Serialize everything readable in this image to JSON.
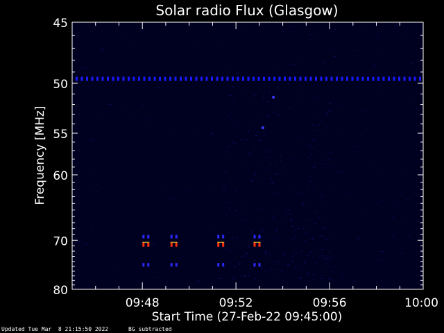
{
  "chart_data": {
    "type": "heatmap",
    "title": "Solar radio Flux (Glasgow)",
    "xlabel": "Start Time (27-Feb-22 09:45:00)",
    "ylabel": "Frequency [MHz]",
    "x_range_minutes": [
      0,
      15
    ],
    "x_ticks": [
      {
        "minutes": 3,
        "label": "09:48"
      },
      {
        "minutes": 7,
        "label": "09:52"
      },
      {
        "minutes": 11,
        "label": "09:56"
      },
      {
        "minutes": 15,
        "label": "10:00"
      }
    ],
    "y_range_mhz": [
      45,
      80
    ],
    "y_ticks": [
      45,
      50,
      55,
      60,
      70,
      80
    ],
    "y_tick_labels": [
      "45",
      "50",
      "55",
      "60",
      "70",
      "80"
    ],
    "y_scale": "reciprocal",
    "background_color": "#000020",
    "interference_band": {
      "freq_mhz": 49.6,
      "color": "#1a1aff"
    },
    "bursts": [
      {
        "minutes": 3.15,
        "freq_mhz": 70.8,
        "color": "#ff3010"
      },
      {
        "minutes": 4.35,
        "freq_mhz": 70.8,
        "color": "#ff3010"
      },
      {
        "minutes": 6.35,
        "freq_mhz": 70.8,
        "color": "#ff3010"
      },
      {
        "minutes": 7.9,
        "freq_mhz": 70.8,
        "color": "#ff3010"
      }
    ],
    "burst_satellites_mhz": [
      69.3,
      74.6
    ],
    "grid": false,
    "legend": "none"
  },
  "footer": {
    "updated": "Updated Tue Mar  8 21:15:50 2022",
    "note": "BG subtracted"
  }
}
